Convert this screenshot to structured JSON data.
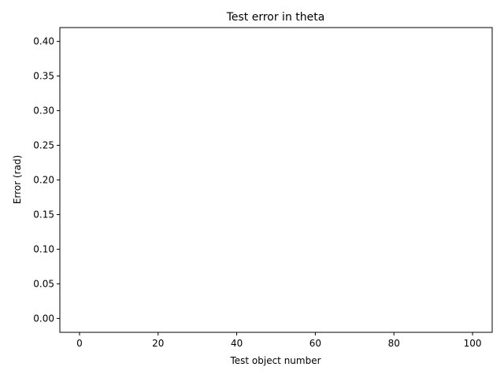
{
  "chart_data": {
    "type": "scatter",
    "title": "Test error in theta",
    "xlabel": "Test object number",
    "ylabel": "Error (rad)",
    "xlim": [
      -5,
      105
    ],
    "ylim": [
      -0.02,
      0.42
    ],
    "x_ticks": [
      0,
      20,
      40,
      60,
      80,
      100
    ],
    "x_tick_labels": [
      "0",
      "20",
      "40",
      "60",
      "80",
      "100"
    ],
    "y_ticks": [
      0.0,
      0.05,
      0.1,
      0.15,
      0.2,
      0.25,
      0.3,
      0.35,
      0.4
    ],
    "y_tick_labels": [
      "0.00",
      "0.05",
      "0.10",
      "0.15",
      "0.20",
      "0.25",
      "0.30",
      "0.35",
      "0.40"
    ],
    "grid": false,
    "series": []
  }
}
